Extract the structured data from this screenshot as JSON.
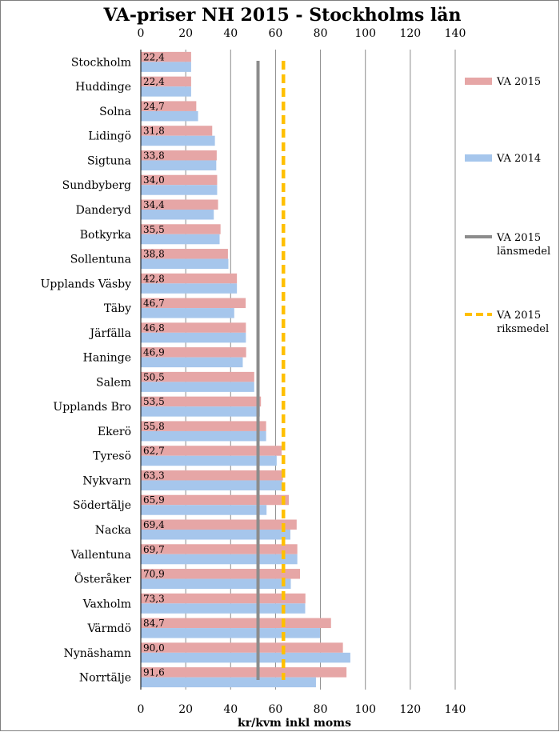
{
  "chart_data": {
    "type": "bar",
    "title": "VA-priser NH 2015 - Stockholms län",
    "xlabel": "kr/kvm inkl moms",
    "ylabel": "",
    "xlim": [
      0,
      140
    ],
    "ticks": [
      0,
      20,
      40,
      60,
      80,
      100,
      120,
      140
    ],
    "tick_labels": [
      "0",
      "20",
      "40",
      "60",
      "80",
      "100",
      "120",
      "140"
    ],
    "grid": true,
    "legend_position": "right",
    "categories": [
      "Stockholm",
      "Huddinge",
      "Solna",
      "Lidingö",
      "Sigtuna",
      "Sundbyberg",
      "Danderyd",
      "Botkyrka",
      "Sollentuna",
      "Upplands Väsby",
      "Täby",
      "Järfälla",
      "Haninge",
      "Salem",
      "Upplands Bro",
      "Ekerö",
      "Tyresö",
      "Nykvarn",
      "Södertälje",
      "Nacka",
      "Vallentuna",
      "Österåker",
      "Vaxholm",
      "Värmdö",
      "Nynäshamn",
      "Norrtälje"
    ],
    "series": [
      {
        "name": "VA 2015",
        "color": "#e6a6a6",
        "values": [
          22.4,
          22.4,
          24.7,
          31.8,
          33.8,
          34.0,
          34.4,
          35.5,
          38.8,
          42.8,
          46.7,
          46.8,
          46.9,
          50.5,
          53.5,
          55.8,
          62.7,
          63.3,
          65.9,
          69.4,
          69.7,
          70.9,
          73.3,
          84.7,
          90.0,
          91.6
        ],
        "labels": [
          "22,4",
          "22,4",
          "24,7",
          "31,8",
          "33,8",
          "34,0",
          "34,4",
          "35,5",
          "38,8",
          "42,8",
          "46,7",
          "46,8",
          "46,9",
          "50,5",
          "53,5",
          "55,8",
          "62,7",
          "63,3",
          "65,9",
          "69,4",
          "69,7",
          "70,9",
          "73,3",
          "84,7",
          "90,0",
          "91,6"
        ]
      },
      {
        "name": "VA 2014",
        "color": "#a6c6ec",
        "values": [
          22.4,
          22.4,
          25.5,
          33.0,
          33.6,
          34.0,
          32.5,
          35.1,
          39.0,
          42.8,
          41.6,
          46.8,
          45.4,
          50.5,
          53.0,
          55.8,
          60.5,
          63.0,
          56.0,
          66.6,
          69.7,
          66.8,
          73.2,
          79.8,
          93.3,
          78.0
        ]
      }
    ],
    "reference_lines": [
      {
        "name": "VA 2015\nlänsmedel",
        "value": 52.2,
        "color": "#8c8c8c",
        "style": "solid"
      },
      {
        "name": "VA 2015\nriksmedel",
        "value": 63.5,
        "color": "#ffc000",
        "style": "dashed"
      }
    ]
  }
}
